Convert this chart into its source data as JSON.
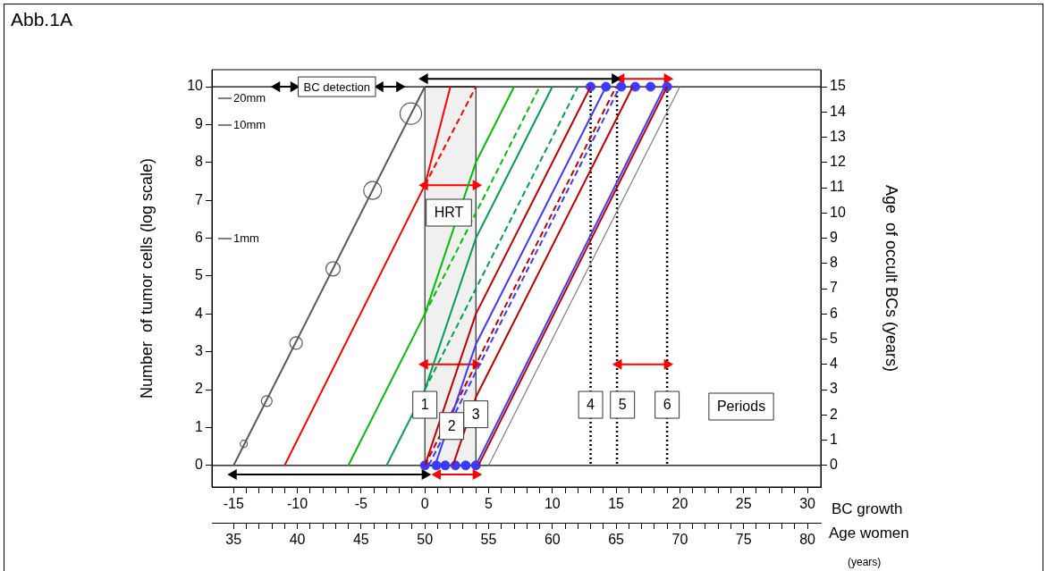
{
  "chart_data": {
    "type": "line",
    "title": "Abb.1A",
    "xlabel": "BC growth",
    "x2label": "Age women",
    "ylabel": "Number  of tumor cells (log scale)",
    "y2label": "Age  of occult BCs (years)",
    "xlim": [
      -16.7,
      31.05
    ],
    "xticks": [
      -15,
      {
        "value": -14,
        "label": null
      },
      {
        "value": -13,
        "label": null
      },
      {
        "value": -12,
        "label": null
      },
      {
        "value": -11,
        "label": null
      },
      -10,
      {
        "value": -9,
        "label": null
      },
      {
        "value": -8,
        "label": null
      },
      {
        "value": -7,
        "label": null
      },
      {
        "value": -6,
        "label": null
      },
      -5,
      {
        "value": -4,
        "label": null
      },
      {
        "value": -3,
        "label": null
      },
      {
        "value": -2,
        "label": null
      },
      {
        "value": -1,
        "label": null
      },
      0,
      {
        "value": 1,
        "label": null
      },
      {
        "value": 2,
        "label": null
      },
      {
        "value": 3,
        "label": null
      },
      {
        "value": 4,
        "label": null
      },
      5,
      {
        "value": 6,
        "label": null
      },
      {
        "value": 7,
        "label": null
      },
      {
        "value": 8,
        "label": null
      },
      {
        "value": 9,
        "label": null
      },
      10,
      {
        "value": 11,
        "label": null
      },
      {
        "value": 12,
        "label": null
      },
      {
        "value": 13,
        "label": null
      },
      {
        "value": 14,
        "label": null
      },
      15,
      {
        "value": 16,
        "label": null
      },
      {
        "value": 17,
        "label": null
      },
      {
        "value": 18,
        "label": null
      },
      {
        "value": 19,
        "label": null
      },
      20,
      {
        "value": 21,
        "label": null
      },
      {
        "value": 22,
        "label": null
      },
      {
        "value": 23,
        "label": null
      },
      {
        "value": 24,
        "label": null
      },
      25,
      {
        "value": 26,
        "label": null
      },
      {
        "value": 27,
        "label": null
      },
      {
        "value": 28,
        "label": null
      },
      {
        "value": 29,
        "label": null
      },
      30
    ],
    "x2lim": [
      33.3,
      81.05
    ],
    "x2ticks": [
      35,
      {
        "value": 36,
        "label": null
      },
      {
        "value": 37,
        "label": null
      },
      {
        "value": 38,
        "label": null
      },
      {
        "value": 39,
        "label": null
      },
      40,
      {
        "value": 41,
        "label": null
      },
      {
        "value": 42,
        "label": null
      },
      {
        "value": 43,
        "label": null
      },
      {
        "value": 44,
        "label": null
      },
      45,
      {
        "value": 46,
        "label": null
      },
      {
        "value": 47,
        "label": null
      },
      {
        "value": 48,
        "label": null
      },
      {
        "value": 49,
        "label": null
      },
      50,
      {
        "value": 51,
        "label": null
      },
      {
        "value": 52,
        "label": null
      },
      {
        "value": 53,
        "label": null
      },
      {
        "value": 54,
        "label": null
      },
      55,
      {
        "value": 56,
        "label": null
      },
      {
        "value": 57,
        "label": null
      },
      {
        "value": 58,
        "label": null
      },
      {
        "value": 59,
        "label": null
      },
      60,
      {
        "value": 61,
        "label": null
      },
      {
        "value": 62,
        "label": null
      },
      {
        "value": 63,
        "label": null
      },
      {
        "value": 64,
        "label": null
      },
      65,
      {
        "value": 66,
        "label": null
      },
      {
        "value": 67,
        "label": null
      },
      {
        "value": 68,
        "label": null
      },
      {
        "value": 69,
        "label": null
      },
      70,
      {
        "value": 71,
        "label": null
      },
      {
        "value": 72,
        "label": null
      },
      {
        "value": 73,
        "label": null
      },
      {
        "value": 74,
        "label": null
      },
      75,
      {
        "value": 76,
        "label": null
      },
      {
        "value": 77,
        "label": null
      },
      {
        "value": 78,
        "label": null
      },
      {
        "value": 79,
        "label": null
      },
      80
    ],
    "ylim": [
      -0.57,
      10.45
    ],
    "yticks": [
      0,
      1,
      2,
      3,
      4,
      5,
      6,
      7,
      8,
      9,
      10
    ],
    "y2lim": [
      -0.855,
      15.675
    ],
    "y2ticks": [
      0,
      1,
      2,
      3,
      4,
      5,
      6,
      7,
      8,
      9,
      10,
      11,
      12,
      13,
      14,
      15
    ],
    "series": [
      {
        "color": "#595959",
        "x": [
          -15,
          0
        ],
        "values": [
          0,
          10
        ]
      },
      {
        "type": "bubble",
        "color": "#595959",
        "x": [
          -14.2,
          -12.4,
          -10.1,
          -7.2,
          -4.1,
          -1.1
        ],
        "values": [
          0.57,
          1.7,
          3.23,
          5.19,
          7.26,
          9.29
        ],
        "sizes": [
          0.11,
          0.25,
          0.34,
          0.44,
          0.69,
          1
        ]
      },
      {
        "type": "line",
        "color": "#ff0000",
        "x": [
          -11,
          0,
          2
        ],
        "values": [
          0,
          7.4,
          10
        ]
      },
      {
        "type": "line",
        "color": "#ff0000",
        "line_style": "dashed",
        "x": [
          0,
          4
        ],
        "values": [
          7.4,
          10
        ]
      },
      {
        "type": "line",
        "color": "#00c000",
        "x": [
          -6,
          0,
          4,
          7
        ],
        "values": [
          0,
          4,
          8,
          10
        ]
      },
      {
        "type": "line",
        "color": "#00c000",
        "line_style": "dashed",
        "x": [
          0,
          9
        ],
        "values": [
          4,
          10
        ]
      },
      {
        "type": "line",
        "color": "#00a050",
        "x": [
          -3,
          0,
          4,
          10
        ],
        "values": [
          0,
          2,
          6,
          10
        ]
      },
      {
        "type": "line",
        "color": "#00a050",
        "line_style": "dashed",
        "x": [
          0,
          12
        ],
        "values": [
          2,
          10
        ]
      },
      {
        "type": "line",
        "color": "#c00000",
        "x": [
          0,
          4,
          13
        ],
        "values": [
          0,
          4,
          10
        ]
      },
      {
        "type": "line",
        "color": "#3b3bff",
        "x": [
          0.8,
          4,
          14.2
        ],
        "values": [
          0,
          3.2,
          10
        ]
      },
      {
        "type": "line",
        "color": "#c00000",
        "line_style": "dashed",
        "x": [
          0,
          15
        ],
        "values": [
          0,
          10
        ]
      },
      {
        "type": "line",
        "color": "#3b3bff",
        "line_style": "dashed",
        "x": [
          0.3,
          15.3
        ],
        "values": [
          0,
          10
        ]
      },
      {
        "type": "line",
        "color": "#c00000",
        "x": [
          2.2,
          4,
          16.3
        ],
        "values": [
          0,
          1.8,
          10
        ]
      },
      {
        "type": "line",
        "color": "#3b3bff",
        "x": [
          4,
          18.8
        ],
        "values": [
          0,
          10
        ]
      },
      {
        "type": "line",
        "color": "#c00000",
        "x": [
          4.2,
          19
        ],
        "values": [
          0,
          10
        ]
      },
      {
        "type": "line",
        "color": "#808080",
        "x": [
          5,
          20
        ],
        "values": [
          0,
          10
        ]
      },
      {
        "type": "scatter",
        "color": "#3b3bff",
        "marker": "circle",
        "x": [
          0,
          0.9,
          1.6,
          2.4,
          3.2,
          4
        ],
        "values": [
          0,
          0,
          0,
          0,
          0,
          0
        ]
      },
      {
        "type": "scatter",
        "color": "#3b3bff",
        "marker": "circle",
        "x": [
          13,
          14.2,
          15.4,
          16.5,
          17.7,
          19
        ],
        "values": [
          10,
          10,
          10,
          10,
          10,
          10
        ]
      },
      {
        "type": "line",
        "color": "#000000",
        "marker": "triangle",
        "x": [
          -15,
          0
        ],
        "values": [
          -0.24,
          -0.24
        ]
      },
      {
        "type": "line",
        "color": "#000000",
        "marker": "triangle",
        "x": [
          0,
          14.9
        ],
        "values": [
          10.21,
          10.21
        ]
      },
      {
        "type": "line",
        "color": "#000000",
        "marker": "triangle",
        "x": [
          -11.6,
          -10.3
        ],
        "values": [
          10,
          10
        ]
      },
      {
        "type": "line",
        "color": "#000000",
        "marker": "triangle",
        "x": [
          -3.5,
          -2.0
        ],
        "values": [
          10,
          10
        ]
      },
      {
        "type": "line",
        "color": "#ff0000",
        "marker": "triangle",
        "x": [
          15.4,
          19
        ],
        "values": [
          10.21,
          10.21
        ]
      },
      {
        "type": "line",
        "color": "#ff0000",
        "marker": "triangle",
        "x": [
          1,
          4
        ],
        "values": [
          -0.24,
          -0.24
        ]
      },
      {
        "type": "line",
        "color": "#ff0000",
        "marker": "triangle",
        "x": [
          0,
          4
        ],
        "values": [
          7.4,
          7.4
        ]
      },
      {
        "type": "line",
        "color": "#ff0000",
        "marker": "triangle",
        "x": [
          0,
          4
        ],
        "values": [
          2.67,
          2.67
        ]
      },
      {
        "type": "line",
        "color": "#ff0000",
        "marker": "triangle",
        "x": [
          15.2,
          19
        ],
        "values": [
          2.67,
          2.67
        ]
      }
    ],
    "bands": [
      {
        "axis": "x",
        "from": 0,
        "to": 4,
        "color": "#f0f0f0"
      }
    ],
    "ref_lines": [
      {
        "axis": "y",
        "value": 0,
        "color": "#000000",
        "line_style": "solid"
      },
      {
        "axis": "y",
        "value": 10,
        "color": "#000000",
        "line_style": "solid"
      },
      {
        "axis": "x",
        "value": 13,
        "color": "#000000",
        "line_style": "dotted"
      },
      {
        "axis": "x",
        "value": 15.07,
        "color": "#000000",
        "line_style": "dotted"
      },
      {
        "axis": "x",
        "value": 19,
        "color": "#000000",
        "line_style": "dotted"
      }
    ],
    "annotations": [
      {
        "text": "BC detection",
        "x": -6.9,
        "y": 10
      },
      {
        "text": "1",
        "x": 0,
        "y": 1.6
      },
      {
        "text": "2",
        "x": 2.1,
        "y": 1.04
      },
      {
        "text": "3",
        "x": 4,
        "y": 1.35
      },
      {
        "text": "4",
        "x": 13,
        "y": 1.6
      },
      {
        "text": "5",
        "x": 15.5,
        "y": 1.6
      },
      {
        "text": "6",
        "x": 19,
        "y": 1.6
      },
      "20mm",
      "10mm",
      "1mm",
      "HRT",
      "Periods",
      "(years)"
    ]
  }
}
